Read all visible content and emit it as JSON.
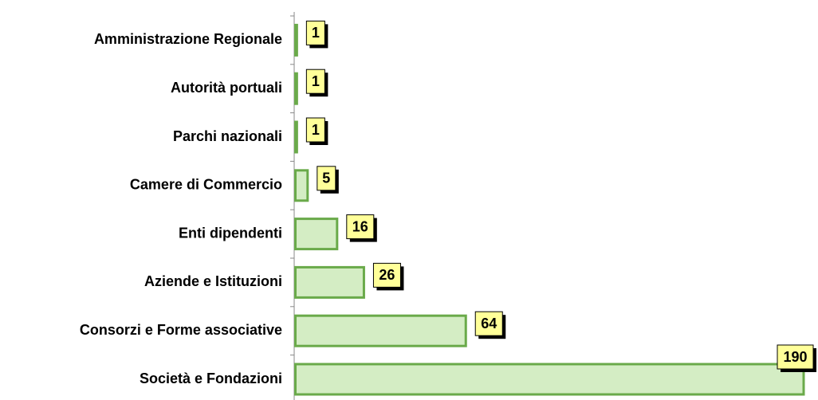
{
  "chart_data": {
    "type": "bar",
    "orientation": "horizontal",
    "categories": [
      "Amministrazione Regionale",
      "Autorità portuali",
      "Parchi nazionali",
      "Camere di Commercio",
      "Enti dipendenti",
      "Aziende e Istituzioni",
      "Consorzi e Forme associative",
      "Società e Fondazioni"
    ],
    "values": [
      1,
      1,
      1,
      5,
      16,
      26,
      64,
      190
    ],
    "color": "#d4edc4",
    "edge_color": "#6aaa4a",
    "label_color": "#ffff99"
  }
}
